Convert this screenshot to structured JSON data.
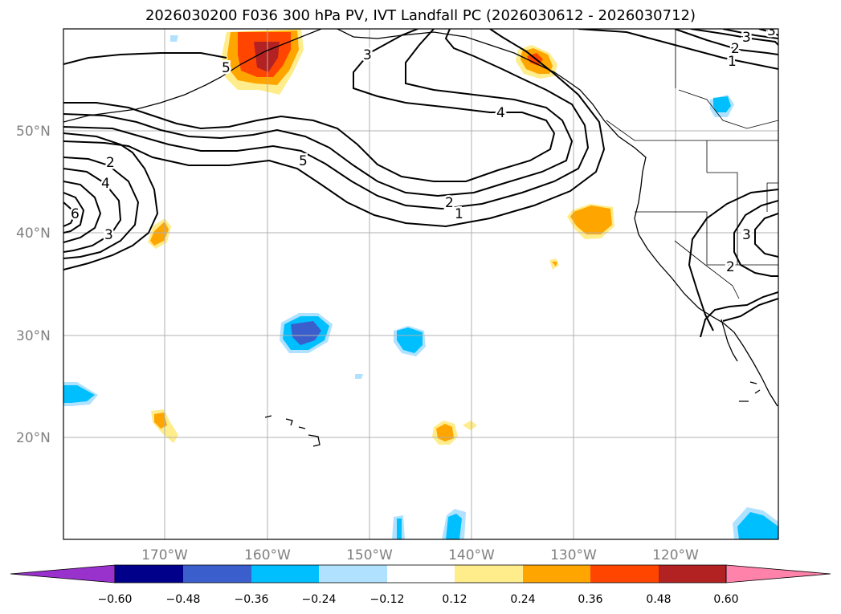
{
  "title": "2026030200 F036 300 hPa PV, IVT Landfall PC (2026030612 - 2026030712)",
  "lat_labels": [
    "50°N",
    "40°N",
    "30°N",
    "20°N"
  ],
  "lon_labels": [
    "170°W",
    "160°W",
    "150°W",
    "140°W",
    "130°W",
    "120°W"
  ],
  "colorbar": {
    "ticks": [
      "−0.60",
      "−0.48",
      "−0.36",
      "−0.24",
      "−0.12",
      "0.12",
      "0.24",
      "0.36",
      "0.48",
      "0.60"
    ],
    "colors": [
      "#9932cc",
      "#00008b",
      "#3a5fcd",
      "#00bfff",
      "#b0e2ff",
      "#ffffff",
      "#ffec8b",
      "#ffa500",
      "#ff4500",
      "#b22222",
      "#ff82ab"
    ]
  },
  "contour_labels": [
    "5",
    "3",
    "4",
    "5",
    "2",
    "1",
    "2",
    "4",
    "6",
    "3",
    "3",
    "2",
    "1",
    "3",
    "2",
    "3"
  ],
  "colors": {
    "negative_mid": "#00bfff",
    "positive_mid": "#ffa500",
    "grid": "#b0b0b0"
  }
}
